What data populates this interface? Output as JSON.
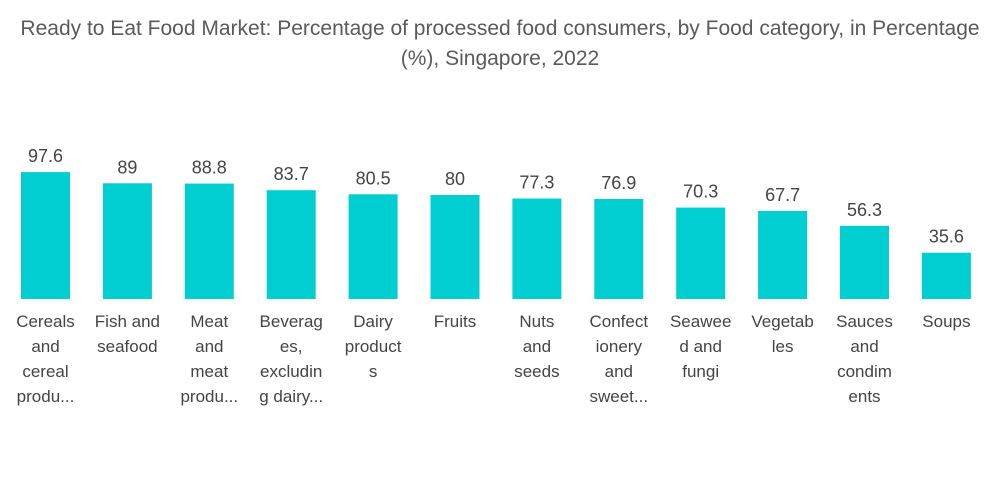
{
  "chart_data": {
    "type": "bar",
    "title": "Ready to Eat Food Market: Percentage of processed food consumers, by Food category, in Percentage (%), Singapore, 2022",
    "xlabel": "",
    "ylabel": "",
    "ylim": [
      0,
      100
    ],
    "grid": false,
    "bar_color": "#00CED1",
    "categories": [
      "Cereals and cereal products",
      "Fish and seafood",
      "Meat and meat products",
      "Beverages, excluding dairy products",
      "Dairy products",
      "Fruits",
      "Nuts and seeds",
      "Confectionery and sweets",
      "Seaweed and fungi",
      "Vegetables",
      "Sauces and condiments",
      "Soups"
    ],
    "category_display_lines": [
      [
        "Cereals",
        "and",
        "cereal",
        "produ..."
      ],
      [
        "Fish and",
        "seafood"
      ],
      [
        "Meat",
        "and",
        "meat",
        "produ..."
      ],
      [
        "Beverag",
        "es,",
        "excludin",
        "g dairy..."
      ],
      [
        "Dairy",
        "product",
        "s"
      ],
      [
        "Fruits"
      ],
      [
        "Nuts",
        "and",
        "seeds"
      ],
      [
        "Confect",
        "ionery",
        "and",
        "sweet..."
      ],
      [
        "Seawee",
        "d and",
        "fungi"
      ],
      [
        "Vegetab",
        "les"
      ],
      [
        "Sauces",
        "and",
        "condim",
        "ents"
      ],
      [
        "Soups"
      ]
    ],
    "values": [
      97.6,
      89,
      88.8,
      83.7,
      80.5,
      80,
      77.3,
      76.9,
      70.3,
      67.7,
      56.3,
      35.6
    ],
    "value_labels": [
      "97.6",
      "89",
      "88.8",
      "83.7",
      "80.5",
      "80",
      "77.3",
      "76.9",
      "70.3",
      "67.7",
      "56.3",
      "35.6"
    ]
  }
}
